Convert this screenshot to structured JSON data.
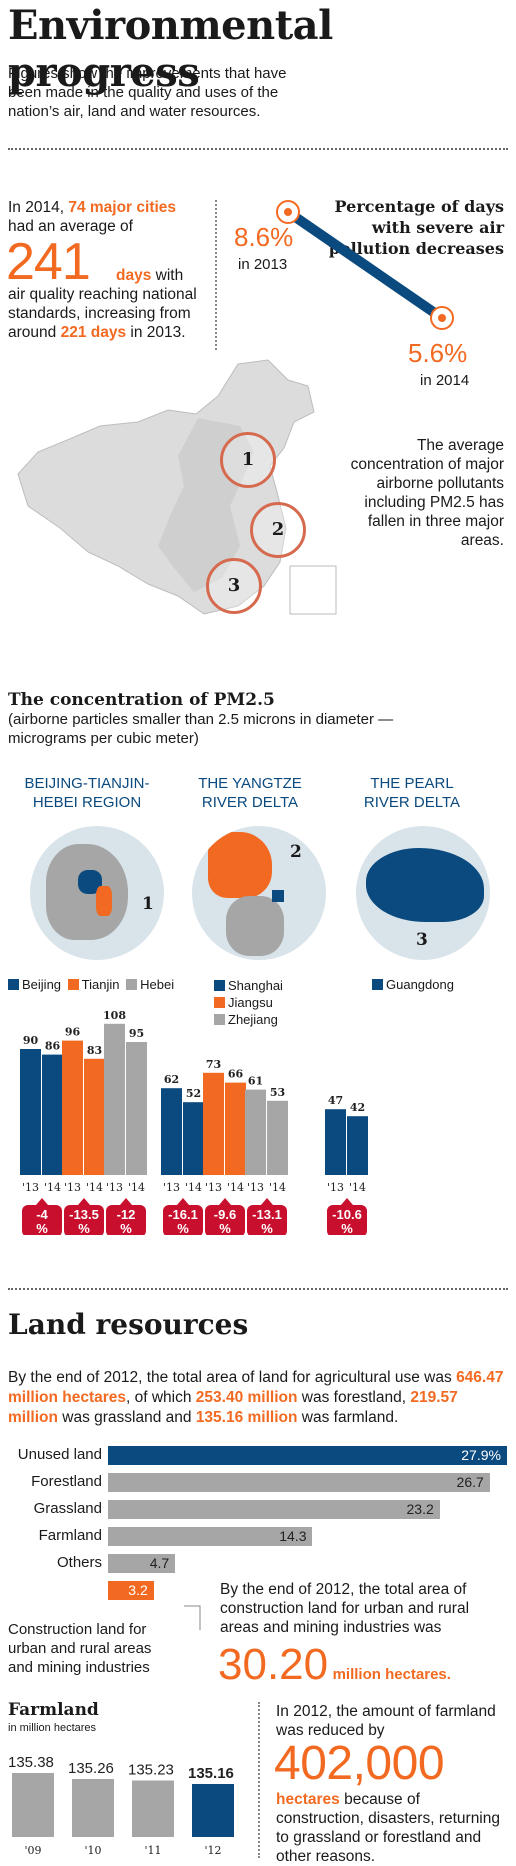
{
  "title": "Environmental progress",
  "subtitle": "Figures show the improvements that have been made in the quality and uses of the nation’s air, land and water resources.",
  "air": {
    "intro_a": "In 2014, ",
    "cities": "74 major cities",
    "intro_b": " had an average of",
    "days_big": "241",
    "days_word": "days",
    "intro_c": " with air quality reaching national standards, increasing from around ",
    "days_prev": "221 days",
    "intro_d": " in 2013.",
    "severe_title": "Percentage of days with severe air pollution decreases",
    "severe": [
      {
        "value": "8.6%",
        "year": "in 2013"
      },
      {
        "value": "5.6%",
        "year": "in 2014"
      }
    ],
    "map_markers": [
      "1",
      "2",
      "3"
    ],
    "map_note": "The average concentration of major airborne pollutants including PM2.5 has fallen in three major areas."
  },
  "pm": {
    "title": "The concentration of PM2.5",
    "subtitle": "(airborne particles smaller than 2.5 microns in diameter — micrograms per cubic meter)",
    "regions": [
      {
        "name": "BEIJING-TIANJIN-HEBEI REGION",
        "marker": "1"
      },
      {
        "name": "THE YANGTZE RIVER DELTA",
        "marker": "2"
      },
      {
        "name": "THE PEARL RIVER DELTA",
        "marker": "3"
      }
    ]
  },
  "colors": {
    "blue": "#0a4a7f",
    "orange": "#f26a21",
    "gray": "#a6a6a6",
    "red": "#c8102e"
  },
  "chart_data": [
    {
      "type": "bar",
      "title": "The concentration of PM2.5",
      "categories": [
        "'13",
        "'14"
      ],
      "series": [
        {
          "name": "Beijing",
          "values": [
            90,
            86
          ],
          "color": "#0a4a7f",
          "change": "-4 %"
        },
        {
          "name": "Tianjin",
          "values": [
            96,
            83
          ],
          "color": "#f26a21",
          "change": "-13.5 %"
        },
        {
          "name": "Hebei",
          "values": [
            108,
            95
          ],
          "color": "#a6a6a6",
          "change": "-12 %"
        },
        {
          "name": "Shanghai",
          "values": [
            62,
            52
          ],
          "color": "#0a4a7f",
          "change": "-16.1 %"
        },
        {
          "name": "Jiangsu",
          "values": [
            73,
            66
          ],
          "color": "#f26a21",
          "change": "-9.6 %"
        },
        {
          "name": "Zhejiang",
          "values": [
            61,
            53
          ],
          "color": "#a6a6a6",
          "change": "-13.1 %"
        },
        {
          "name": "Guangdong",
          "values": [
            47,
            42
          ],
          "color": "#0a4a7f",
          "change": "-10.6 %"
        }
      ]
    },
    {
      "type": "bar",
      "orientation": "horizontal",
      "categories": [
        "Unused land",
        "Forestland",
        "Grassland",
        "Farmland",
        "Others",
        "Construction land for urban and rural areas and mining industries"
      ],
      "values": [
        27.9,
        26.7,
        23.2,
        14.3,
        4.7,
        3.2
      ],
      "labels": [
        "27.9%",
        "26.7",
        "23.2",
        "14.3",
        "4.7",
        "3.2"
      ]
    },
    {
      "type": "bar",
      "title": "Farmland",
      "subtitle": "in million hectares",
      "categories": [
        "'09",
        "'10",
        "'11",
        "'12"
      ],
      "values": [
        135.38,
        135.26,
        135.23,
        135.16
      ]
    }
  ],
  "land": {
    "title": "Land resources",
    "p1": "By the end of 2012, the total area of land for agricultural use was ",
    "v1": "646.47 million hectares",
    "p2": ", of which ",
    "v2": "253.40 million",
    "p3": " was forestland, ",
    "v3": "219.57 million",
    "p4": " was grassland and ",
    "v4": "135.16 million",
    "p5": " was farmland.",
    "construction_text": "By the end of 2012, the total area of construction land for urban and rural areas and mining industries was",
    "construction_big": "30.20",
    "construction_unit": "million hectares."
  },
  "farm": {
    "text_a": "In 2012, the amount of farmland was reduced by",
    "big": "402,000",
    "unit": "hectares",
    "text_b": " because of construction, disasters, returning to grassland or forestland and other reasons."
  }
}
